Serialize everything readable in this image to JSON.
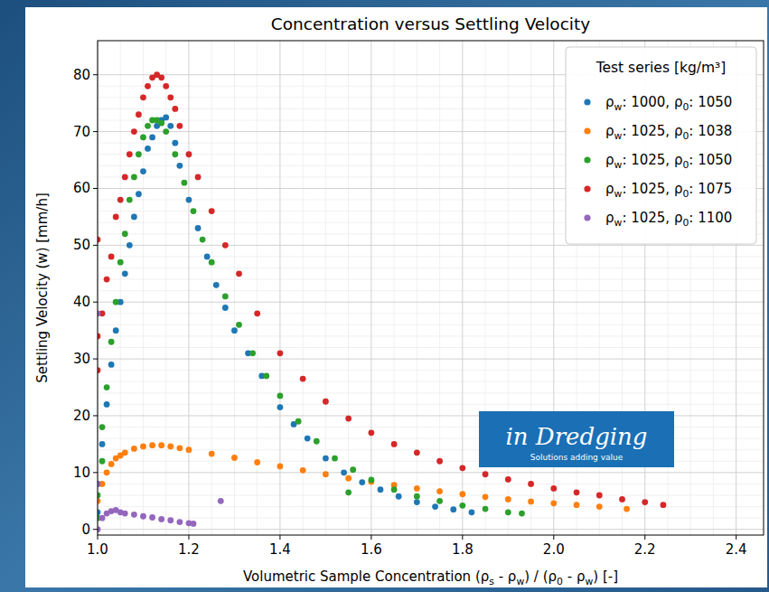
{
  "chart_data": {
    "type": "scatter",
    "title": "Concentration versus Settling Velocity",
    "x_label": "Volumetric Sample Concentration (ρs - ρw) / (ρ0 - ρw) [-]",
    "y_label": "Settling Velocity (w) [mm/h]",
    "legend_title": "Test series [kg/m³]",
    "annotations": [
      "in Dredging",
      "Solutions adding value"
    ],
    "xlim": [
      1.0,
      2.46
    ],
    "ylim": [
      -1,
      86
    ],
    "xticks": [
      {
        "value": 1.0,
        "label": "1.0"
      },
      1.2,
      1.4,
      1.6,
      1.8,
      {
        "value": 2.0,
        "label": "2.0"
      },
      2.2,
      2.4
    ],
    "yticks": [
      0,
      10,
      20,
      30,
      40,
      50,
      60,
      70,
      80
    ],
    "grid": true,
    "legend": "upper right",
    "marker": "circle",
    "series": [
      {
        "name": "ρw: 1000, ρ0: 1050",
        "color": "#1f77b4",
        "x": [
          1.0,
          1.0,
          1.01,
          1.02,
          1.03,
          1.04,
          1.05,
          1.06,
          1.07,
          1.08,
          1.09,
          1.1,
          1.11,
          1.12,
          1.13,
          1.14,
          1.15,
          1.16,
          1.17,
          1.18,
          1.2,
          1.22,
          1.24,
          1.26,
          1.28,
          1.3,
          1.33,
          1.36,
          1.4,
          1.43,
          1.46,
          1.5,
          1.54,
          1.58,
          1.62,
          1.66,
          1.7,
          1.74,
          1.78,
          1.82
        ],
        "values": [
          3,
          8,
          15,
          22,
          29,
          35,
          40,
          45,
          50,
          55,
          59,
          63,
          67,
          69,
          71,
          72,
          72.5,
          71,
          68,
          64,
          58,
          53,
          48,
          43,
          39,
          35,
          31,
          27,
          21.5,
          18.5,
          16,
          12.5,
          10,
          8.3,
          7,
          5.8,
          4.8,
          4,
          3.5,
          3
        ]
      },
      {
        "name": "ρw: 1025, ρ0: 1038",
        "color": "#ff7f0e",
        "x": [
          1.0,
          1.01,
          1.02,
          1.03,
          1.04,
          1.05,
          1.06,
          1.08,
          1.1,
          1.12,
          1.14,
          1.16,
          1.18,
          1.2,
          1.25,
          1.3,
          1.35,
          1.4,
          1.45,
          1.5,
          1.55,
          1.6,
          1.65,
          1.7,
          1.75,
          1.8,
          1.85,
          1.9,
          1.95,
          2.0,
          2.05,
          2.1,
          2.16
        ],
        "values": [
          5,
          8,
          10,
          11.5,
          12.5,
          13,
          13.5,
          14.2,
          14.6,
          14.8,
          14.8,
          14.6,
          14.3,
          14,
          13.3,
          12.6,
          11.8,
          11.1,
          10.4,
          9.7,
          9,
          8.4,
          7.8,
          7.2,
          6.7,
          6.2,
          5.7,
          5.3,
          4.9,
          4.6,
          4.3,
          4,
          3.6
        ]
      },
      {
        "name": "ρw: 1025, ρ0: 1050",
        "color": "#2ca02c",
        "x": [
          1.0,
          1.0,
          1.01,
          1.01,
          1.02,
          1.03,
          1.04,
          1.05,
          1.06,
          1.07,
          1.08,
          1.09,
          1.1,
          1.11,
          1.12,
          1.13,
          1.14,
          1.15,
          1.17,
          1.19,
          1.21,
          1.23,
          1.25,
          1.28,
          1.31,
          1.34,
          1.37,
          1.4,
          1.44,
          1.48,
          1.52,
          1.55,
          1.56,
          1.6,
          1.65,
          1.7,
          1.75,
          1.8,
          1.85,
          1.9,
          1.93
        ],
        "values": [
          2,
          6,
          12,
          18,
          25,
          33,
          40,
          47,
          52,
          58,
          62,
          66,
          69,
          71,
          72,
          72,
          71.5,
          70,
          66,
          61,
          56,
          51,
          47,
          41,
          36,
          31,
          27,
          23.5,
          19,
          15.5,
          12.5,
          6.5,
          10.5,
          8.7,
          7,
          5.8,
          5,
          4.2,
          3.6,
          3,
          2.8
        ]
      },
      {
        "name": "ρw: 1025, ρ0: 1075",
        "color": "#d62728",
        "x": [
          1.0,
          1.0,
          1.0,
          1.01,
          1.02,
          1.03,
          1.04,
          1.05,
          1.06,
          1.07,
          1.08,
          1.09,
          1.1,
          1.11,
          1.12,
          1.13,
          1.14,
          1.15,
          1.16,
          1.17,
          1.18,
          1.2,
          1.22,
          1.25,
          1.28,
          1.31,
          1.35,
          1.4,
          1.45,
          1.5,
          1.55,
          1.6,
          1.65,
          1.7,
          1.75,
          1.8,
          1.85,
          1.9,
          1.95,
          2.0,
          2.05,
          2.1,
          2.15,
          2.2,
          2.24
        ],
        "values": [
          51,
          34,
          28,
          38,
          44,
          48,
          55,
          58,
          62,
          66,
          70,
          73,
          76,
          78,
          79.5,
          80,
          79.5,
          78,
          76,
          74,
          71,
          66,
          62,
          56,
          50,
          45,
          38,
          31,
          26.5,
          22.5,
          19.5,
          17,
          15,
          13.5,
          12,
          10.8,
          9.7,
          8.8,
          8,
          7.2,
          6.5,
          6,
          5.3,
          4.8,
          4.3
        ]
      },
      {
        "name": "ρw: 1025, ρ0: 1100",
        "color": "#9467bd",
        "x": [
          1.0,
          1.0,
          1.0,
          1.01,
          1.02,
          1.03,
          1.04,
          1.05,
          1.06,
          1.08,
          1.1,
          1.12,
          1.14,
          1.16,
          1.18,
          1.2,
          1.21,
          1.27
        ],
        "values": [
          38,
          8,
          0,
          2,
          2.8,
          3.2,
          3.4,
          3,
          2.8,
          2.6,
          2.3,
          2.1,
          1.8,
          1.6,
          1.3,
          1.1,
          1,
          5
        ]
      }
    ]
  }
}
